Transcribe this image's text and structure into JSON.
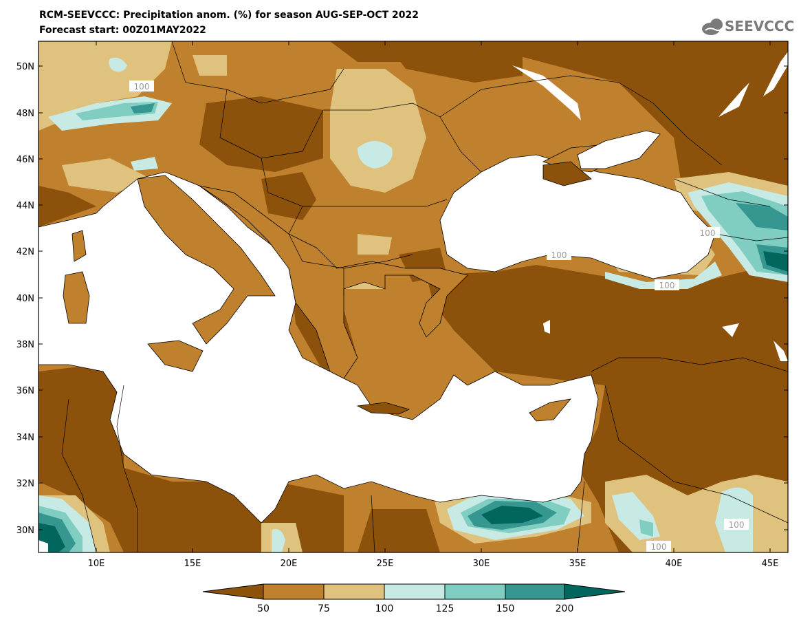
{
  "header": {
    "title_line1": "RCM-SEEVCCC: Precipitation anom. (%) for season AUG-SEP-OCT 2022",
    "title_line2": "Forecast start: 00Z01MAY2022",
    "logo_text": "SEEVCCC"
  },
  "map": {
    "lat_labels": [
      "50N",
      "48N",
      "46N",
      "44N",
      "42N",
      "40N",
      "38N",
      "36N",
      "34N",
      "32N",
      "30N"
    ],
    "lon_labels": [
      "10E",
      "15E",
      "20E",
      "25E",
      "30E",
      "35E",
      "40E",
      "45E"
    ],
    "contour_labels": [
      "100",
      "100",
      "100",
      "100",
      "100",
      "100"
    ]
  },
  "colorbar": {
    "labels": [
      "50",
      "75",
      "100",
      "125",
      "150",
      "200"
    ],
    "colors": [
      "#8c510a",
      "#bf812d",
      "#dfc27d",
      "#c7eae5",
      "#80cdc1",
      "#35978f",
      "#01665e"
    ]
  }
}
